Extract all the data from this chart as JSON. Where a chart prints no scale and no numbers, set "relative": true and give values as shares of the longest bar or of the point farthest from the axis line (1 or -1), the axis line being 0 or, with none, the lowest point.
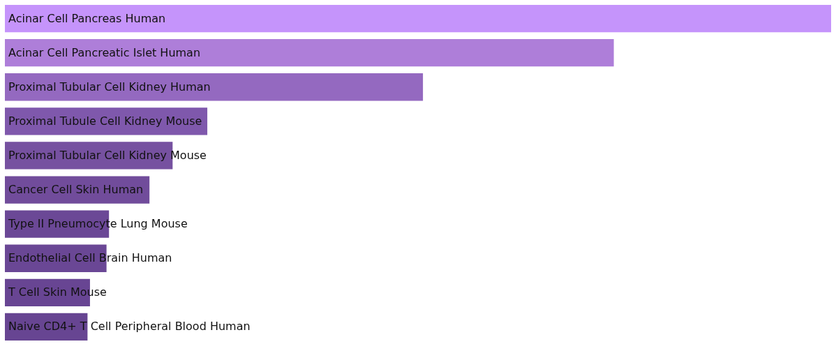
{
  "chart_data": {
    "type": "bar",
    "orientation": "horizontal",
    "relative": true,
    "tick_labels": false,
    "legend": false,
    "data_labels": false,
    "categories": [
      "Acinar Cell Pancreas Human",
      "Acinar Cell Pancreatic Islet Human",
      "Proximal Tubular Cell Kidney Human",
      "Proximal Tubule Cell Kidney Mouse",
      "Proximal Tubular Cell Kidney Mouse",
      "Cancer Cell Skin Human",
      "Type II Pneumocyte Lung Mouse",
      "Endothelial Cell Brain Human",
      "T Cell Skin Mouse",
      "Naive CD4+ T Cell Peripheral Blood Human"
    ],
    "values": [
      1,
      0.737,
      0.506,
      0.245,
      0.203,
      0.175,
      0.126,
      0.123,
      0.103,
      0.1
    ],
    "colors": [
      "#c594fb",
      "#ae7ed9",
      "#9469c0",
      "#7f58ac",
      "#7651a0",
      "#714c9b",
      "#6b4896",
      "#6a4795",
      "#684593",
      "#674592"
    ]
  }
}
